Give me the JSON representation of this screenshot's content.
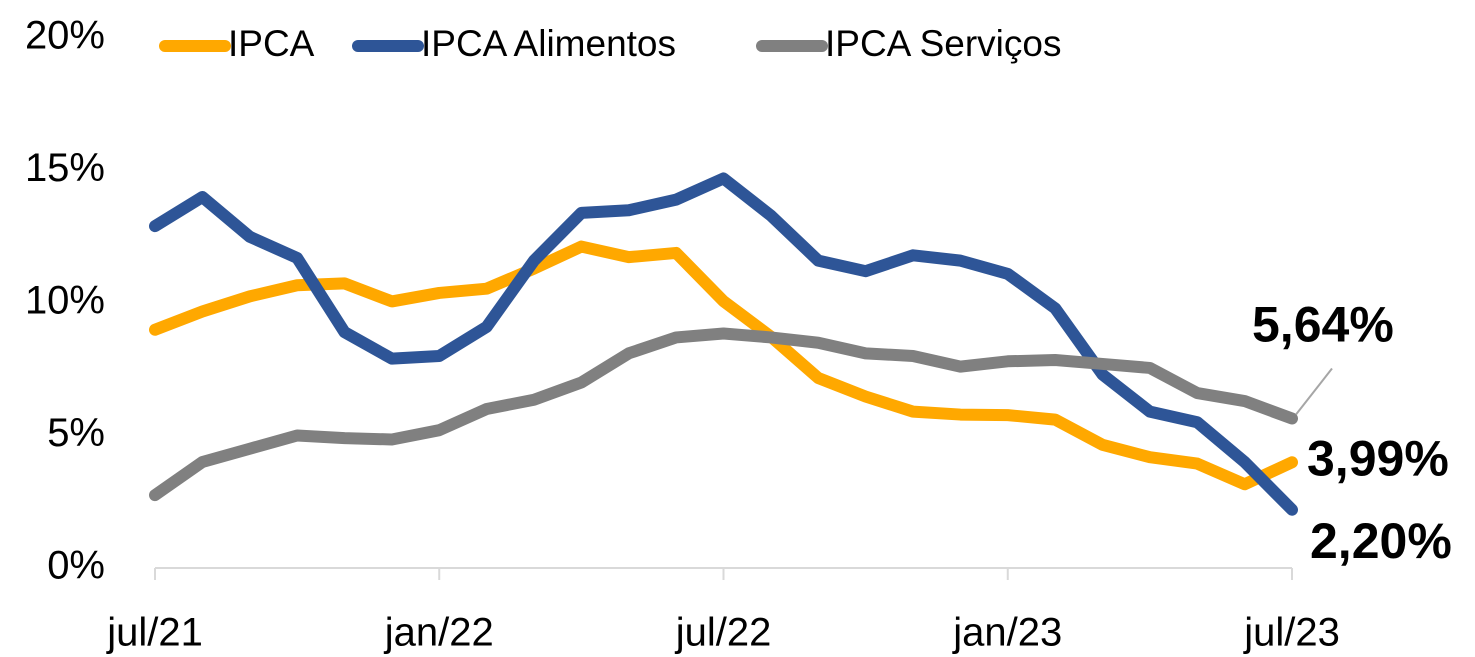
{
  "chart_data": {
    "type": "line",
    "categories": [
      "jul/21",
      null,
      null,
      null,
      null,
      null,
      "jan/22",
      null,
      null,
      null,
      null,
      null,
      "jul/22",
      null,
      null,
      null,
      null,
      null,
      "jan/23",
      null,
      null,
      null,
      null,
      null,
      "jul/23"
    ],
    "series": [
      {
        "name": "IPCA",
        "color": "#ffa800",
        "values": [
          8.99,
          9.68,
          10.25,
          10.67,
          10.74,
          10.06,
          10.38,
          10.54,
          11.3,
          12.13,
          11.73,
          11.89,
          10.07,
          8.73,
          7.17,
          6.47,
          5.9,
          5.79,
          5.77,
          5.6,
          4.65,
          4.18,
          3.94,
          3.16,
          3.99
        ],
        "value_labels": [
          null,
          null,
          null,
          null,
          null,
          null,
          null,
          null,
          null,
          null,
          null,
          null,
          null,
          null,
          null,
          null,
          null,
          null,
          null,
          null,
          null,
          null,
          null,
          null,
          "3,99%"
        ]
      },
      {
        "name": "IPCA Alimentos",
        "color": "#2e5597",
        "values": [
          12.9,
          14.0,
          12.5,
          11.7,
          8.9,
          7.9,
          8.0,
          9.1,
          11.6,
          13.4,
          13.5,
          13.9,
          14.7,
          13.3,
          11.6,
          11.2,
          11.8,
          11.6,
          11.1,
          9.8,
          7.3,
          5.9,
          5.5,
          4.0,
          2.2
        ],
        "value_labels": [
          null,
          null,
          null,
          null,
          null,
          null,
          null,
          null,
          null,
          null,
          null,
          null,
          null,
          null,
          null,
          null,
          null,
          null,
          null,
          null,
          null,
          null,
          null,
          null,
          "2,20%"
        ]
      },
      {
        "name": "IPCA Serviços",
        "color": "#808080",
        "values": [
          2.75,
          4.0,
          4.5,
          5.0,
          4.9,
          4.85,
          5.2,
          6.0,
          6.35,
          7.0,
          8.1,
          8.7,
          8.85,
          8.7,
          8.5,
          8.1,
          8.0,
          7.6,
          7.8,
          7.85,
          7.7,
          7.55,
          6.6,
          6.3,
          5.64
        ],
        "value_labels": [
          null,
          null,
          null,
          null,
          null,
          null,
          null,
          null,
          null,
          null,
          null,
          null,
          null,
          null,
          null,
          null,
          null,
          null,
          null,
          null,
          null,
          null,
          null,
          null,
          "5,64%"
        ]
      }
    ],
    "ylim": [
      0,
      20
    ],
    "yticks": [
      {
        "value": 0,
        "label": "0%"
      },
      {
        "value": 5,
        "label": "5%"
      },
      {
        "value": 10,
        "label": "10%"
      },
      {
        "value": 15,
        "label": "15%"
      },
      {
        "value": 20,
        "label": "20%"
      }
    ],
    "legend": "top",
    "grid": false
  }
}
